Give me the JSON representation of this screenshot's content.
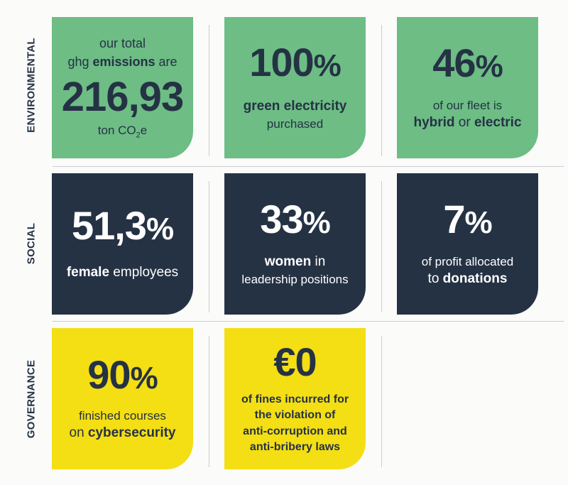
{
  "rows": {
    "environmental": "ENVIRONMENTAL",
    "social": "SOCIAL",
    "governance": "GOVERNANCE"
  },
  "colors": {
    "green": "#6dbd85",
    "navy": "#253244",
    "yellow": "#f4de14"
  },
  "env": {
    "emissions": {
      "line1": "our total",
      "line2a": "ghg ",
      "line2b": "emissions",
      "line2c": " are",
      "value": "216,93",
      "unit_a": "ton CO",
      "unit_sub": "2",
      "unit_b": "e"
    },
    "electricity": {
      "value": "100",
      "pct": "%",
      "line1": "green electricity",
      "line2": "purchased"
    },
    "fleet": {
      "value": "46",
      "pct": "%",
      "line1": "of our fleet is",
      "line2a": "hybrid",
      "line2b": " or ",
      "line2c": "electric"
    }
  },
  "social": {
    "female": {
      "value": "51,3",
      "pct": "%",
      "line1a": "female",
      "line1b": " employees"
    },
    "women": {
      "value": "33",
      "pct": "%",
      "line1a": "women",
      "line1b": " in",
      "line2": "leadership positions"
    },
    "profit": {
      "value": "7",
      "pct": "%",
      "line1": "of profit allocated",
      "line2a": "to ",
      "line2b": "donations"
    }
  },
  "gov": {
    "courses": {
      "value": "90",
      "pct": "%",
      "line1": "finished courses",
      "line2a": "on ",
      "line2b": "cybersecurity"
    },
    "fines": {
      "value": "€0",
      "line1": "of fines incurred for",
      "line2": "the violation of",
      "line3": "anti-corruption and",
      "line4": "anti-bribery laws"
    }
  }
}
